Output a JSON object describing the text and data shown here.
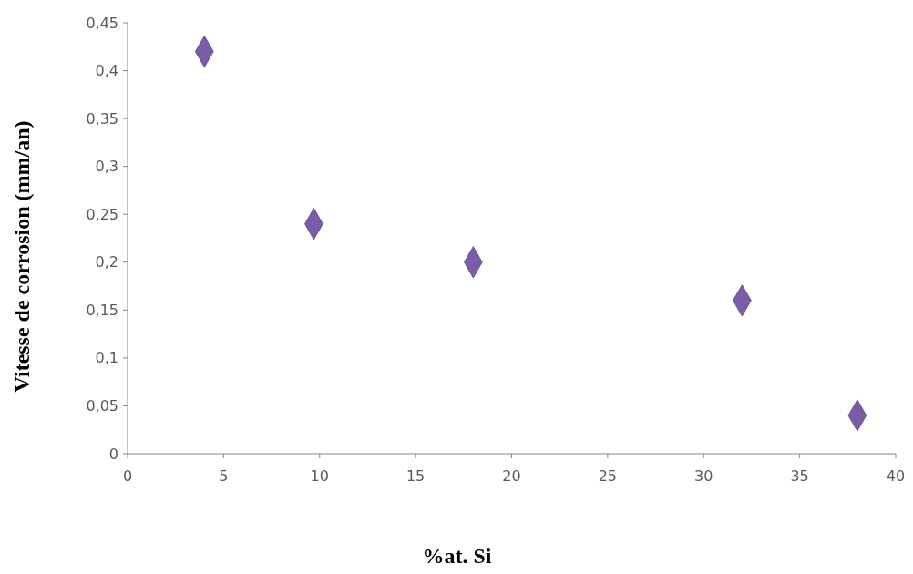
{
  "chart_data": {
    "type": "scatter",
    "xlabel": "%at. Si",
    "ylabel": "Vitesse de corrosion (mm/an)",
    "x": [
      4,
      9.7,
      18,
      32,
      38
    ],
    "values": [
      0.42,
      0.24,
      0.2,
      0.16,
      0.04
    ],
    "color": "#7b5ca6",
    "marker": "diamond",
    "xlim": [
      0,
      40
    ],
    "xticks": [
      0,
      5,
      10,
      15,
      20,
      25,
      30,
      35,
      40
    ],
    "ylim": [
      0,
      0.45
    ],
    "yticks": [
      {
        "value": 0,
        "label": "0"
      },
      {
        "value": 0.05,
        "label": "0,05"
      },
      {
        "value": 0.1,
        "label": "0,1"
      },
      {
        "value": 0.15,
        "label": "0,15"
      },
      {
        "value": 0.2,
        "label": "0,2"
      },
      {
        "value": 0.25,
        "label": "0,25"
      },
      {
        "value": 0.3,
        "label": "0,3"
      },
      {
        "value": 0.35,
        "label": "0,35"
      },
      {
        "value": 0.4,
        "label": "0,4"
      },
      {
        "value": 0.45,
        "label": "0,45"
      }
    ]
  }
}
